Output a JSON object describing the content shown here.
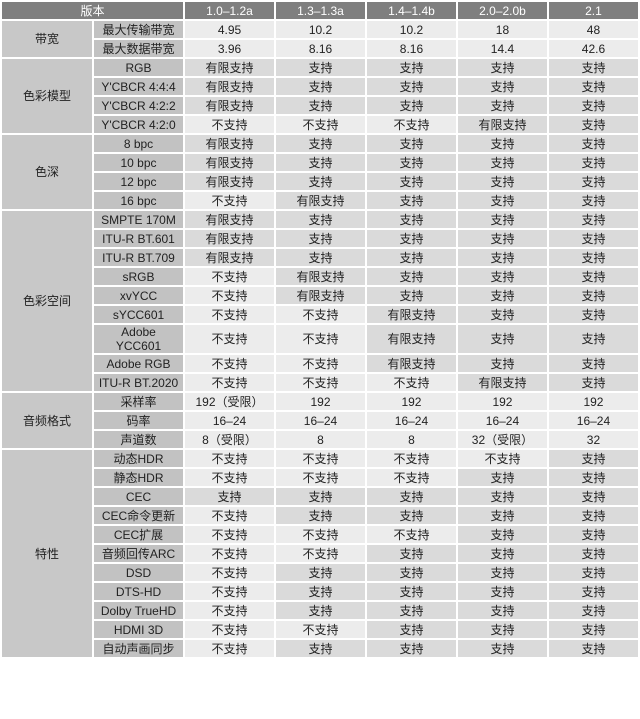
{
  "header": {
    "corner": "版本",
    "versions": [
      "1.0–1.2a",
      "1.3–1.3a",
      "1.4–1.4b",
      "2.0–2.0b",
      "2.1"
    ]
  },
  "colors": {
    "header_bg": "#7f7f7f",
    "category_bg": "#c8c8c8",
    "supported_bg": "#dadada",
    "unsupported_bg": "#ececec"
  },
  "groups": [
    {
      "name": "带宽",
      "rows": [
        {
          "label": "最大传输带宽",
          "values": [
            "4.95",
            "10.2",
            "10.2",
            "18",
            "48"
          ]
        },
        {
          "label": "最大数据带宽",
          "values": [
            "3.96",
            "8.16",
            "8.16",
            "14.4",
            "42.6"
          ]
        }
      ]
    },
    {
      "name": "色彩模型",
      "rows": [
        {
          "label": "RGB",
          "values": [
            "有限支持",
            "支持",
            "支持",
            "支持",
            "支持"
          ]
        },
        {
          "label": "Y'CBCR 4:4:4",
          "values": [
            "有限支持",
            "支持",
            "支持",
            "支持",
            "支持"
          ]
        },
        {
          "label": "Y'CBCR 4:2:2",
          "values": [
            "有限支持",
            "支持",
            "支持",
            "支持",
            "支持"
          ]
        },
        {
          "label": "Y'CBCR 4:2:0",
          "values": [
            "不支持",
            "不支持",
            "不支持",
            "有限支持",
            "支持"
          ]
        }
      ]
    },
    {
      "name": "色深",
      "rows": [
        {
          "label": "8 bpc",
          "values": [
            "有限支持",
            "支持",
            "支持",
            "支持",
            "支持"
          ]
        },
        {
          "label": "10 bpc",
          "values": [
            "有限支持",
            "支持",
            "支持",
            "支持",
            "支持"
          ]
        },
        {
          "label": "12 bpc",
          "values": [
            "有限支持",
            "支持",
            "支持",
            "支持",
            "支持"
          ]
        },
        {
          "label": "16 bpc",
          "values": [
            "不支持",
            "有限支持",
            "支持",
            "支持",
            "支持"
          ]
        }
      ]
    },
    {
      "name": "色彩空间",
      "rows": [
        {
          "label": "SMPTE 170M",
          "values": [
            "有限支持",
            "支持",
            "支持",
            "支持",
            "支持"
          ]
        },
        {
          "label": "ITU-R BT.601",
          "values": [
            "有限支持",
            "支持",
            "支持",
            "支持",
            "支持"
          ]
        },
        {
          "label": "ITU-R BT.709",
          "values": [
            "有限支持",
            "支持",
            "支持",
            "支持",
            "支持"
          ]
        },
        {
          "label": "sRGB",
          "values": [
            "不支持",
            "有限支持",
            "支持",
            "支持",
            "支持"
          ]
        },
        {
          "label": "xvYCC",
          "values": [
            "不支持",
            "有限支持",
            "支持",
            "支持",
            "支持"
          ]
        },
        {
          "label": "sYCC601",
          "values": [
            "不支持",
            "不支持",
            "有限支持",
            "支持",
            "支持"
          ]
        },
        {
          "label": "Adobe YCC601",
          "values": [
            "不支持",
            "不支持",
            "有限支持",
            "支持",
            "支持"
          ]
        },
        {
          "label": "Adobe RGB",
          "values": [
            "不支持",
            "不支持",
            "有限支持",
            "支持",
            "支持"
          ]
        },
        {
          "label": "ITU-R BT.2020",
          "values": [
            "不支持",
            "不支持",
            "不支持",
            "有限支持",
            "支持"
          ]
        }
      ]
    },
    {
      "name": "音频格式",
      "rows": [
        {
          "label": "采样率",
          "values": [
            "192（受限）",
            "192",
            "192",
            "192",
            "192"
          ]
        },
        {
          "label": "码率",
          "values": [
            "16–24",
            "16–24",
            "16–24",
            "16–24",
            "16–24"
          ]
        },
        {
          "label": "声道数",
          "values": [
            "8（受限）",
            "8",
            "8",
            "32（受限）",
            "32"
          ]
        }
      ]
    },
    {
      "name": "特性",
      "rows": [
        {
          "label": "动态HDR",
          "values": [
            "不支持",
            "不支持",
            "不支持",
            "不支持",
            "支持"
          ]
        },
        {
          "label": "静态HDR",
          "values": [
            "不支持",
            "不支持",
            "不支持",
            "支持",
            "支持"
          ]
        },
        {
          "label": "CEC",
          "values": [
            "支持",
            "支持",
            "支持",
            "支持",
            "支持"
          ]
        },
        {
          "label": "CEC命令更新",
          "values": [
            "不支持",
            "支持",
            "支持",
            "支持",
            "支持"
          ]
        },
        {
          "label": "CEC扩展",
          "values": [
            "不支持",
            "不支持",
            "不支持",
            "支持",
            "支持"
          ]
        },
        {
          "label": "音频回传ARC",
          "values": [
            "不支持",
            "不支持",
            "支持",
            "支持",
            "支持"
          ]
        },
        {
          "label": "DSD",
          "values": [
            "不支持",
            "支持",
            "支持",
            "支持",
            "支持"
          ]
        },
        {
          "label": "DTS-HD",
          "values": [
            "不支持",
            "支持",
            "支持",
            "支持",
            "支持"
          ]
        },
        {
          "label": "Dolby TrueHD",
          "values": [
            "不支持",
            "支持",
            "支持",
            "支持",
            "支持"
          ]
        },
        {
          "label": "HDMI 3D",
          "values": [
            "不支持",
            "不支持",
            "支持",
            "支持",
            "支持"
          ]
        },
        {
          "label": "自动声画同步",
          "values": [
            "不支持",
            "支持",
            "支持",
            "支持",
            "支持"
          ]
        }
      ]
    }
  ]
}
